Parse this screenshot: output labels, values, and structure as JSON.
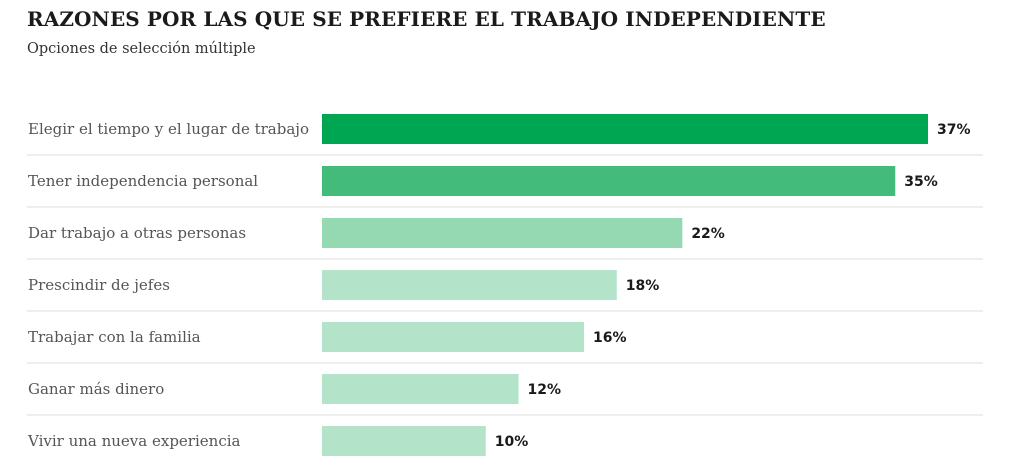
{
  "title": "RAZONES POR LAS QUE SE PREFIERE EL TRABAJO INDEPENDIENTE",
  "subtitle": "Opciones de selección múltiple",
  "chart_data": {
    "type": "bar",
    "orientation": "horizontal",
    "title": "RAZONES POR LAS QUE SE PREFIERE EL TRABAJO INDEPENDIENTE",
    "subtitle": "Opciones de selección múltiple",
    "categories": [
      "Elegir el tiempo  y el lugar de trabajo",
      "Tener independencia personal",
      "Dar trabajo a otras personas",
      "Prescindir de jefes",
      "Trabajar con la familia",
      "Ganar más dinero",
      "Vivir una nueva experiencia"
    ],
    "values": [
      37,
      35,
      22,
      18,
      16,
      12,
      10
    ],
    "value_labels": [
      "37%",
      "35%",
      "22%",
      "18%",
      "16%",
      "12%",
      "10%"
    ],
    "colors": [
      "#00a651",
      "#42bb7b",
      "#95d9b3",
      "#b3e4c9",
      "#b3e4c9",
      "#b3e4c9",
      "#b3e4c9"
    ],
    "separator_color": "#dddddd",
    "unit": "%",
    "xlim": [
      0,
      37
    ],
    "grid": false,
    "legend": "none"
  }
}
